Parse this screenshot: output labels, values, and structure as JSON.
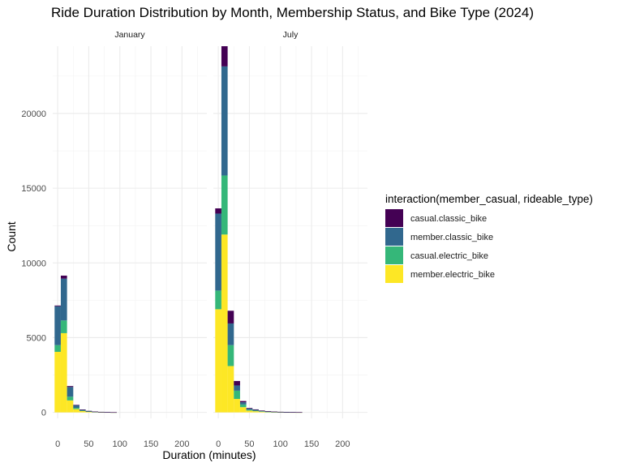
{
  "chart_data": {
    "type": "bar",
    "stacked": true,
    "title": "Ride Duration Distribution by Month, Membership Status, and Bike Type (2024)",
    "xlabel": "Duration (minutes)",
    "ylabel": "Count",
    "xlim": [
      -8,
      240
    ],
    "ylim": [
      -400,
      24500
    ],
    "x_ticks": [
      0,
      50,
      100,
      150,
      200
    ],
    "y_ticks": [
      0,
      5000,
      10000,
      15000,
      20000
    ],
    "bin_width": 10,
    "legend": {
      "title": "interaction(member_casual, rideable_type)",
      "position": "right"
    },
    "series": [
      {
        "name": "casual.classic_bike",
        "color": "#440154"
      },
      {
        "name": "member.classic_bike",
        "color": "#31688E"
      },
      {
        "name": "casual.electric_bike",
        "color": "#35B779"
      },
      {
        "name": "member.electric_bike",
        "color": "#FDE725"
      }
    ],
    "panels": [
      {
        "label": "January",
        "bins": [
          {
            "x": 0,
            "values": [
              50,
              2600,
              450,
              4050
            ]
          },
          {
            "x": 10,
            "values": [
              200,
              2800,
              850,
              5300
            ]
          },
          {
            "x": 20,
            "values": [
              60,
              650,
              250,
              800
            ]
          },
          {
            "x": 30,
            "values": [
              20,
              180,
              80,
              220
            ]
          },
          {
            "x": 40,
            "values": [
              10,
              60,
              30,
              90
            ]
          },
          {
            "x": 50,
            "values": [
              5,
              30,
              15,
              50
            ]
          },
          {
            "x": 60,
            "values": [
              3,
              15,
              8,
              30
            ]
          },
          {
            "x": 70,
            "values": [
              2,
              10,
              5,
              20
            ]
          },
          {
            "x": 80,
            "values": [
              1,
              5,
              3,
              10
            ]
          },
          {
            "x": 90,
            "values": [
              1,
              3,
              2,
              5
            ]
          }
        ]
      },
      {
        "label": "July",
        "bins": [
          {
            "x": 0,
            "values": [
              350,
              5150,
              1250,
              6900
            ]
          },
          {
            "x": 10,
            "values": [
              1350,
              7300,
              3950,
              11900
            ]
          },
          {
            "x": 20,
            "values": [
              850,
              1450,
              1400,
              3100
            ]
          },
          {
            "x": 30,
            "values": [
              300,
              350,
              550,
              900
            ]
          },
          {
            "x": 40,
            "values": [
              80,
              150,
              180,
              350
            ]
          },
          {
            "x": 50,
            "values": [
              40,
              70,
              60,
              120
            ]
          },
          {
            "x": 60,
            "values": [
              30,
              50,
              40,
              80
            ]
          },
          {
            "x": 70,
            "values": [
              20,
              30,
              25,
              50
            ]
          },
          {
            "x": 80,
            "values": [
              15,
              20,
              15,
              30
            ]
          },
          {
            "x": 90,
            "values": [
              10,
              15,
              10,
              20
            ]
          },
          {
            "x": 100,
            "values": [
              8,
              10,
              8,
              15
            ]
          },
          {
            "x": 110,
            "values": [
              5,
              8,
              5,
              10
            ]
          },
          {
            "x": 120,
            "values": [
              4,
              5,
              4,
              8
            ]
          },
          {
            "x": 130,
            "values": [
              3,
              4,
              3,
              5
            ]
          }
        ]
      }
    ]
  }
}
